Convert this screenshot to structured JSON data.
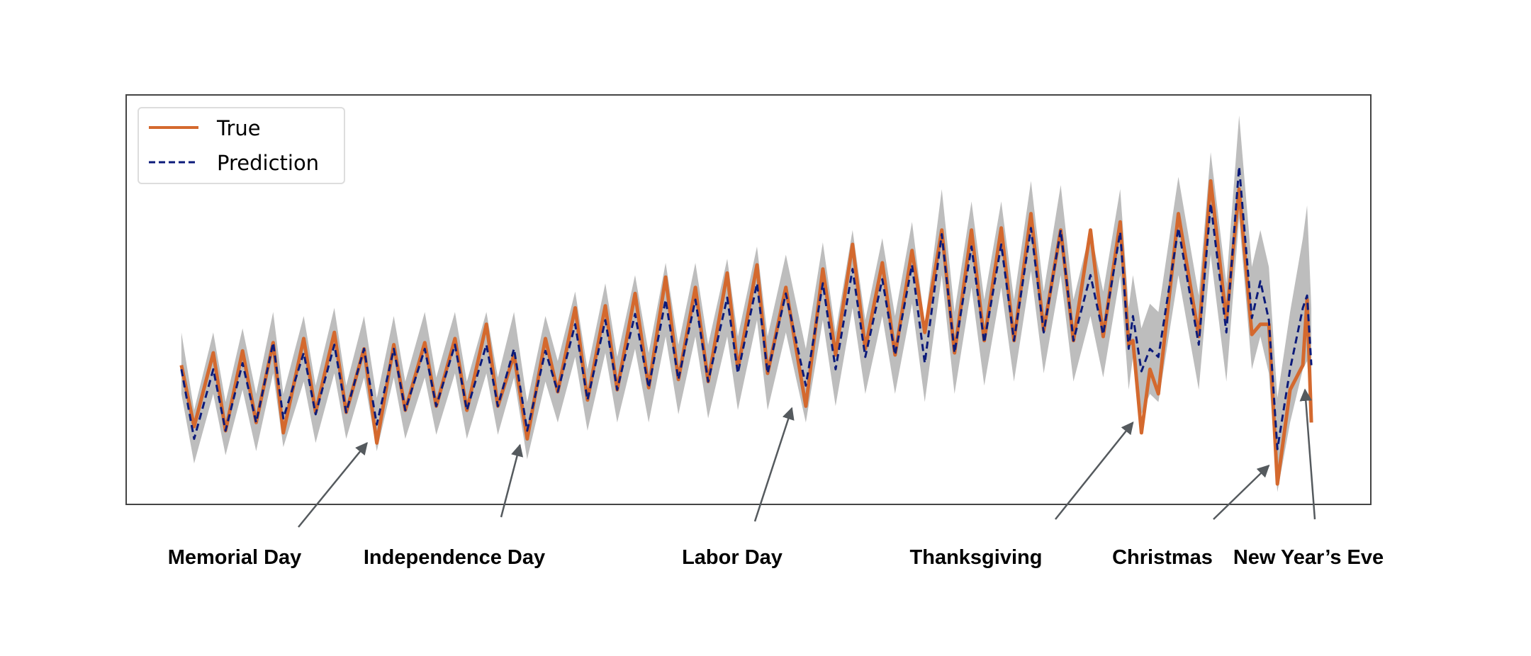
{
  "chart_data": {
    "type": "line",
    "title": "",
    "xlabel": "",
    "ylabel": "",
    "xlim": [
      -13,
      280
    ],
    "ylim": [
      0,
      100
    ],
    "grid": false,
    "legend": {
      "placement": "top-left",
      "entries": [
        "True",
        "Prediction"
      ]
    },
    "colors": {
      "true": "#d4692e",
      "prediction": "#0b1a7a",
      "interval": "#bdbdbd",
      "arrow": "#555a5e"
    },
    "x": [
      0,
      3,
      7.5,
      10.4,
      14.4,
      17.6,
      21.6,
      24,
      28.8,
      31.6,
      36,
      38.8,
      43,
      46,
      50,
      52.7,
      57.3,
      60,
      64.4,
      67.2,
      71.8,
      74.5,
      78.3,
      81.4,
      85.7,
      88.6,
      92.7,
      95.6,
      99.8,
      102.6,
      106.8,
      110,
      114,
      117,
      121,
      124,
      128.5,
      131,
      135.5,
      138,
      142.3,
      147,
      151,
      154,
      158,
      161,
      165,
      168,
      172,
      175,
      179,
      182,
      186,
      189,
      193,
      196,
      200,
      203,
      207,
      210,
      214,
      217,
      221,
      223,
      224,
      226,
      228,
      230,
      234.7,
      239.5,
      242.3,
      246,
      249,
      252,
      254,
      256,
      258,
      261,
      264,
      265,
      266
    ],
    "series": [
      {
        "name": "True",
        "values": [
          34,
          19,
          37,
          18,
          37.5,
          20,
          39.5,
          17.5,
          40.5,
          22.5,
          42,
          22.5,
          38,
          15,
          39,
          23,
          39.5,
          24,
          40.5,
          23,
          44,
          24,
          36.5,
          16,
          40.5,
          27.5,
          48,
          25.5,
          48.5,
          28,
          51.5,
          28.5,
          55.5,
          30.5,
          53,
          30,
          56.5,
          33,
          58.5,
          32,
          53,
          24,
          57.5,
          36.5,
          63.5,
          38,
          59,
          36.5,
          62,
          42,
          67,
          37,
          67,
          40,
          67.5,
          40,
          71,
          42.5,
          67,
          40,
          67,
          41,
          69,
          39,
          40,
          17.5,
          33,
          27,
          71,
          41,
          79,
          45,
          77,
          41.5,
          44,
          44,
          5,
          28,
          34,
          50,
          20
        ]
      },
      {
        "name": "Prediction",
        "values": [
          33,
          16,
          33,
          18,
          34.5,
          20,
          39.5,
          21,
          37,
          22,
          39,
          22.5,
          38,
          19.5,
          38,
          23,
          38,
          24,
          39,
          23,
          39,
          24,
          38,
          18,
          37.5,
          27.5,
          44,
          25.5,
          45,
          28,
          46.5,
          28.5,
          50,
          30.5,
          50,
          30,
          50.5,
          32,
          54,
          32,
          51.5,
          29,
          54,
          33,
          57.5,
          36,
          55,
          36.5,
          58.5,
          34.5,
          66,
          37,
          63,
          39.5,
          63.5,
          40,
          67.5,
          42,
          67,
          40,
          56,
          41.5,
          66.5,
          38,
          46,
          32.5,
          38,
          36,
          67.5,
          39,
          73.5,
          42,
          82.5,
          45.5,
          54.5,
          45,
          13.5,
          33,
          48,
          51,
          34
        ]
      }
    ],
    "interval": {
      "lower": [
        27,
        10,
        27,
        12,
        28,
        13,
        32,
        14,
        30,
        15,
        32,
        16,
        31,
        13,
        31,
        16,
        31,
        17,
        32,
        16,
        32,
        17,
        31,
        11,
        30,
        20,
        36,
        18,
        37,
        20,
        38,
        20,
        41,
        22,
        41,
        21,
        41,
        23,
        45,
        23,
        42,
        20,
        45,
        24,
        48,
        27,
        46,
        27,
        49,
        25,
        56,
        27,
        53,
        29,
        53,
        30,
        57,
        32,
        56,
        30,
        46,
        31,
        56,
        28,
        36,
        22,
        27,
        25,
        56,
        28,
        61,
        30,
        70,
        33,
        41,
        32,
        3,
        20,
        33,
        35,
        22
      ],
      "upper": [
        42,
        23,
        42,
        25,
        43,
        27,
        47,
        27,
        46,
        29,
        48,
        29,
        46,
        26,
        46,
        30,
        47,
        31,
        47,
        30,
        47,
        31,
        47,
        25,
        46,
        35,
        52,
        33,
        54,
        36,
        56,
        37,
        59,
        39,
        59,
        39,
        60,
        41,
        63,
        41,
        61,
        38,
        64,
        42,
        67,
        45,
        65,
        46,
        69,
        44,
        77,
        47,
        74,
        50,
        74,
        50,
        79,
        52,
        78,
        50,
        67,
        52,
        77,
        48,
        56,
        43,
        49,
        47,
        80,
        51,
        86,
        54,
        95,
        58,
        67,
        58,
        26,
        47,
        65,
        73,
        48
      ]
    },
    "annotations": [
      {
        "label": "Memorial Day",
        "x": 43.7,
        "y": 15
      },
      {
        "label": "Independence Day",
        "x": 79.7,
        "y": 14.5
      },
      {
        "label": "Labor Day",
        "x": 143.7,
        "y": 23.5
      },
      {
        "label": "Thanksgiving",
        "x": 224,
        "y": 20
      },
      {
        "label": "Christmas",
        "x": 256,
        "y": 9.5
      },
      {
        "label": "New Year’s Eve",
        "x": 264.5,
        "y": 28
      }
    ]
  }
}
